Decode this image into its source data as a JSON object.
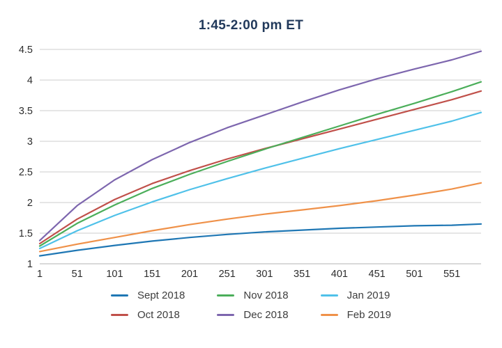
{
  "chart_data": {
    "type": "line",
    "title": "1:45-2:00 pm ET",
    "title_color": "#21395b",
    "xlabel": "",
    "ylabel": "",
    "xlim": [
      1,
      590
    ],
    "ylim": [
      1,
      4.5
    ],
    "grid": true,
    "legend_position": "bottom",
    "x_tick_values": [
      1,
      51,
      101,
      151,
      201,
      251,
      301,
      351,
      401,
      451,
      501,
      551
    ],
    "x_tick_labels": [
      "1",
      "51",
      "101",
      "151",
      "201",
      "251",
      "301",
      "351",
      "401",
      "451",
      "501",
      "551"
    ],
    "y_tick_values": [
      1,
      1.5,
      2,
      2.5,
      3,
      3.5,
      4,
      4.5
    ],
    "y_tick_labels": [
      "1",
      "1.5",
      "2",
      "2.5",
      "3",
      "3.5",
      "4",
      "4.5"
    ],
    "x": [
      1,
      51,
      101,
      151,
      201,
      251,
      301,
      351,
      401,
      451,
      501,
      551,
      590
    ],
    "series": [
      {
        "name": "Sept 2018",
        "color": "#1f77b4",
        "values": [
          1.13,
          1.22,
          1.3,
          1.37,
          1.43,
          1.48,
          1.52,
          1.55,
          1.58,
          1.6,
          1.62,
          1.63,
          1.65
        ]
      },
      {
        "name": "Oct 2018",
        "color": "#c0504a",
        "values": [
          1.33,
          1.73,
          2.05,
          2.31,
          2.52,
          2.71,
          2.88,
          3.04,
          3.2,
          3.36,
          3.52,
          3.68,
          3.82
        ]
      },
      {
        "name": "Nov 2018",
        "color": "#4bae5a",
        "values": [
          1.29,
          1.66,
          1.96,
          2.23,
          2.46,
          2.67,
          2.87,
          3.06,
          3.25,
          3.44,
          3.62,
          3.81,
          3.97
        ]
      },
      {
        "name": "Dec 2018",
        "color": "#7d66ae",
        "values": [
          1.38,
          1.95,
          2.37,
          2.7,
          2.98,
          3.22,
          3.43,
          3.64,
          3.84,
          4.02,
          4.18,
          4.33,
          4.47
        ]
      },
      {
        "name": "Jan 2019",
        "color": "#4fc1e9",
        "values": [
          1.25,
          1.54,
          1.79,
          2.01,
          2.21,
          2.39,
          2.56,
          2.72,
          2.88,
          3.03,
          3.18,
          3.33,
          3.47
        ]
      },
      {
        "name": "Feb 2019",
        "color": "#ef9149",
        "values": [
          1.2,
          1.32,
          1.43,
          1.54,
          1.64,
          1.73,
          1.81,
          1.88,
          1.95,
          2.03,
          2.12,
          2.22,
          2.32
        ]
      }
    ],
    "colors": {
      "gridline": "#cccccc",
      "axis_line": "#b3b3b3",
      "tick_text": "#2d2d2d",
      "legend_text": "#3d3d3d"
    }
  }
}
